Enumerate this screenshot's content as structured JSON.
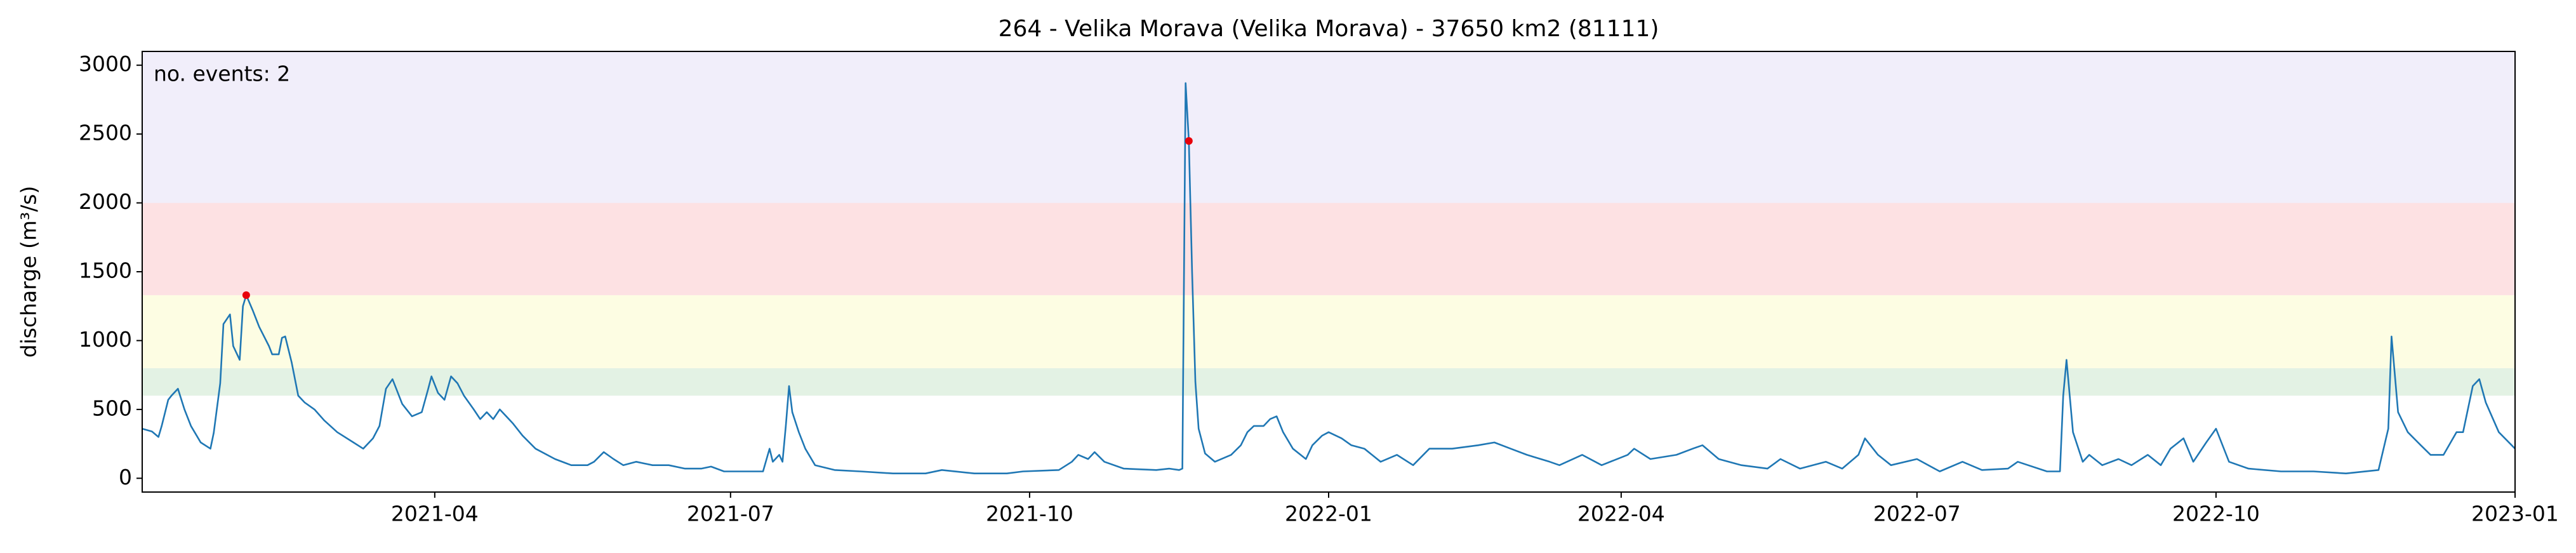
{
  "chart_data": {
    "type": "line",
    "title": "264 - Velika Morava (Velika Morava) - 37650 km2 (81111)",
    "y_label": "discharge (m³/s)",
    "annotation": "no. events: 2",
    "annotation_color": "#e8000b",
    "xlim": [
      0,
      730
    ],
    "ylim": [
      -100,
      3100
    ],
    "xticks": [
      {
        "value": 90,
        "label": "2021-04"
      },
      {
        "value": 181,
        "label": "2021-07"
      },
      {
        "value": 273,
        "label": "2021-10"
      },
      {
        "value": 365,
        "label": "2022-01"
      },
      {
        "value": 455,
        "label": "2022-04"
      },
      {
        "value": 546,
        "label": "2022-07"
      },
      {
        "value": 638,
        "label": "2022-10"
      },
      {
        "value": 730,
        "label": "2023-01"
      }
    ],
    "yticks": [
      0,
      500,
      1000,
      1500,
      2000,
      2500,
      3000
    ],
    "bands": [
      {
        "from": 600,
        "to": 800,
        "color": "#e3f2e4"
      },
      {
        "from": 800,
        "to": 1330,
        "color": "#fdfde3"
      },
      {
        "from": 1330,
        "to": 2000,
        "color": "#fde1e3"
      },
      {
        "from": 2000,
        "to": 3100,
        "color": "#f1eefa"
      }
    ],
    "series": [
      {
        "color": "#1f77b4",
        "x": [
          0,
          3,
          5,
          6,
          8,
          9,
          11,
          13,
          15,
          18,
          21,
          22,
          24,
          25,
          27,
          28,
          30,
          31,
          32,
          34,
          36,
          39,
          40,
          42,
          43,
          44,
          46,
          48,
          50,
          53,
          56,
          60,
          65,
          68,
          71,
          73,
          75,
          77,
          78,
          80,
          83,
          86,
          88,
          89,
          91,
          93,
          95,
          97,
          99,
          102,
          104,
          106,
          108,
          110,
          112,
          114,
          117,
          121,
          127,
          132,
          137,
          139,
          142,
          145,
          148,
          152,
          157,
          162,
          167,
          172,
          175,
          179,
          191,
          193,
          194,
          196,
          197,
          198,
          199,
          200,
          202,
          204,
          207,
          213,
          221,
          231,
          241,
          246,
          256,
          266,
          271,
          282,
          286,
          288,
          291,
          293,
          296,
          302,
          312,
          316,
          319,
          320,
          321,
          322,
          323,
          324,
          325,
          327,
          330,
          335,
          338,
          340,
          342,
          345,
          347,
          349,
          351,
          354,
          358,
          360,
          363,
          365,
          369,
          372,
          376,
          381,
          386,
          391,
          396,
          403,
          411,
          416,
          421,
          426,
          433,
          436,
          443,
          449,
          457,
          459,
          464,
          472,
          477,
          480,
          485,
          492,
          500,
          504,
          510,
          518,
          523,
          528,
          530,
          534,
          538,
          546,
          553,
          560,
          566,
          574,
          577,
          586,
          590,
          591,
          592,
          594,
          597,
          599,
          603,
          608,
          612,
          617,
          621,
          624,
          628,
          631,
          635,
          638,
          642,
          648,
          658,
          668,
          678,
          688,
          691,
          692,
          694,
          697,
          701,
          704,
          708,
          712,
          714,
          717,
          719,
          721,
          725,
          730
        ],
        "values": [
          360,
          340,
          300,
          380,
          570,
          600,
          650,
          500,
          380,
          260,
          215,
          330,
          690,
          1120,
          1190,
          960,
          860,
          1250,
          1330,
          1220,
          1100,
          960,
          900,
          900,
          1020,
          1030,
          840,
          600,
          550,
          500,
          420,
          335,
          260,
          215,
          290,
          380,
          650,
          720,
          660,
          540,
          450,
          480,
          650,
          740,
          620,
          570,
          740,
          690,
          600,
          500,
          430,
          480,
          430,
          500,
          450,
          400,
          310,
          215,
          140,
          95,
          95,
          120,
          190,
          140,
          95,
          120,
          95,
          95,
          70,
          70,
          85,
          50,
          50,
          215,
          120,
          170,
          120,
          380,
          670,
          480,
          335,
          215,
          95,
          60,
          50,
          35,
          35,
          60,
          35,
          35,
          50,
          60,
          120,
          170,
          140,
          190,
          120,
          70,
          60,
          70,
          60,
          70,
          2870,
          2450,
          1500,
          700,
          360,
          180,
          120,
          170,
          240,
          335,
          380,
          380,
          430,
          450,
          335,
          215,
          140,
          240,
          310,
          335,
          290,
          240,
          215,
          120,
          170,
          95,
          215,
          215,
          240,
          260,
          215,
          170,
          120,
          95,
          170,
          95,
          170,
          215,
          140,
          170,
          215,
          240,
          140,
          95,
          70,
          140,
          70,
          120,
          70,
          170,
          290,
          170,
          95,
          140,
          50,
          120,
          60,
          70,
          120,
          50,
          50,
          600,
          860,
          335,
          120,
          170,
          95,
          140,
          95,
          170,
          95,
          215,
          290,
          120,
          260,
          360,
          120,
          70,
          50,
          50,
          35,
          60,
          360,
          1030,
          480,
          335,
          240,
          170,
          170,
          335,
          335,
          670,
          720,
          550,
          335,
          215
        ]
      }
    ],
    "events": {
      "color": "#e8000b",
      "x": [
        32,
        322
      ],
      "values": [
        1330,
        2450
      ]
    }
  }
}
